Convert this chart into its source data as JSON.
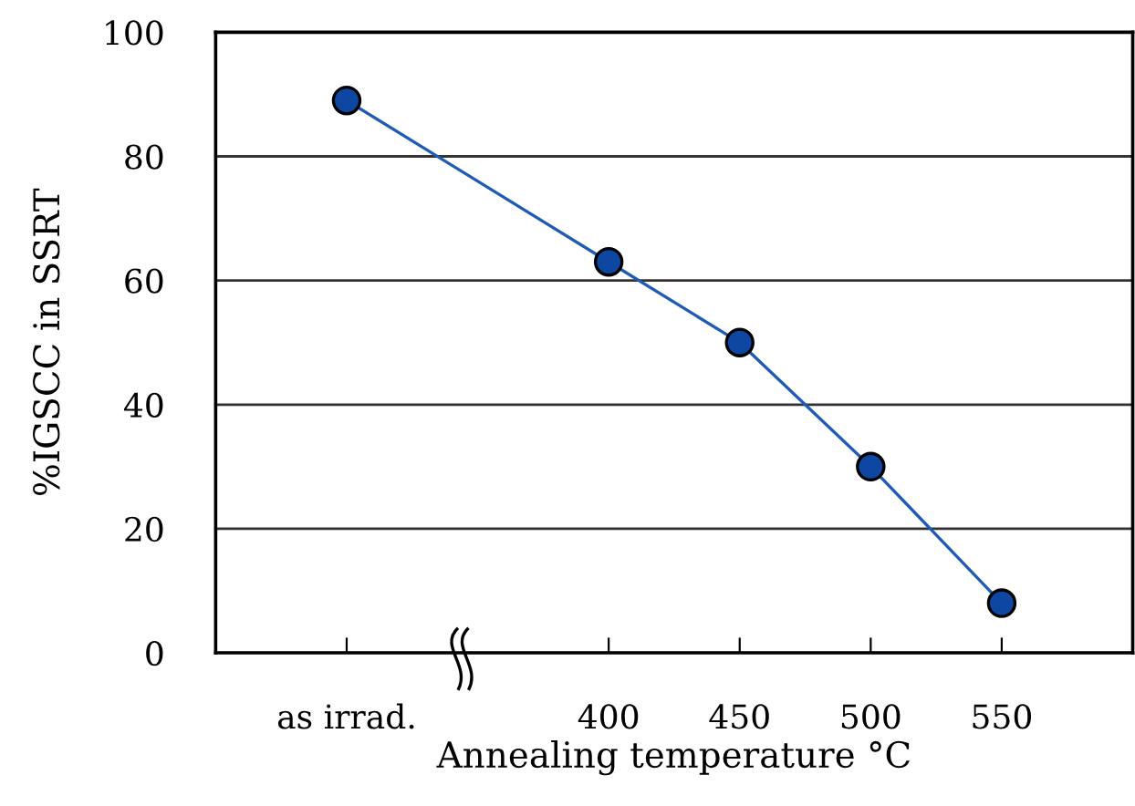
{
  "chart_data": {
    "type": "line",
    "xlabel": "Annealing temperature °C",
    "ylabel": "%IGSCC in SSRT",
    "categories": [
      "as irrad.",
      null,
      "400",
      "450",
      "500",
      "550"
    ],
    "series": [
      {
        "color": "#1f5bb5",
        "values": [
          89,
          null,
          63,
          50,
          30,
          8
        ]
      }
    ],
    "ylim": [
      0,
      100
    ],
    "yticks": [
      0,
      20,
      40,
      60,
      80,
      100
    ],
    "grid": "y",
    "marker": "circle",
    "line_style": "solid",
    "legend": false
  }
}
